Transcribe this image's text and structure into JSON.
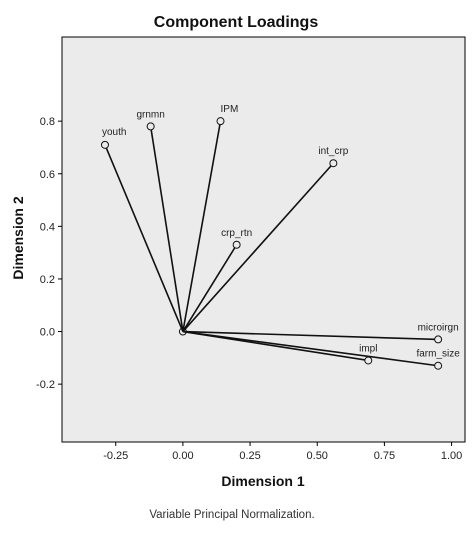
{
  "chart_data": {
    "type": "scatter",
    "title": "Component Loadings",
    "xlabel": "Dimension 1",
    "ylabel": "Dimension 2",
    "footnote": "Variable Principal Normalization.",
    "xlim": [
      -0.45,
      1.05
    ],
    "ylim": [
      -0.42,
      1.12
    ],
    "x_ticks": [
      -0.25,
      0.0,
      0.25,
      0.5,
      0.75,
      1.0
    ],
    "x_tick_labels": [
      "-0.25",
      "0.00",
      "0.25",
      "0.50",
      "0.75",
      "1.00"
    ],
    "y_ticks": [
      -0.2,
      0.0,
      0.2,
      0.4,
      0.6,
      0.8
    ],
    "y_tick_labels": [
      "-0.2",
      "0.0",
      "0.2",
      "0.4",
      "0.6",
      "0.8"
    ],
    "grid": false,
    "vectors_from_origin": true,
    "points": [
      {
        "label": "youth",
        "x": -0.29,
        "y": 0.71
      },
      {
        "label": "grnmn",
        "x": -0.12,
        "y": 0.78
      },
      {
        "label": "IPM",
        "x": 0.14,
        "y": 0.8
      },
      {
        "label": "int_crp",
        "x": 0.56,
        "y": 0.64
      },
      {
        "label": "crp_rtn",
        "x": 0.2,
        "y": 0.33
      },
      {
        "label": "microirgn",
        "x": 0.95,
        "y": -0.03
      },
      {
        "label": "impl",
        "x": 0.69,
        "y": -0.11
      },
      {
        "label": "farm_size",
        "x": 0.95,
        "y": -0.13
      }
    ],
    "colors": {
      "plot_background": "#ebebeb",
      "line": "#111111",
      "frame": "#000000"
    }
  }
}
